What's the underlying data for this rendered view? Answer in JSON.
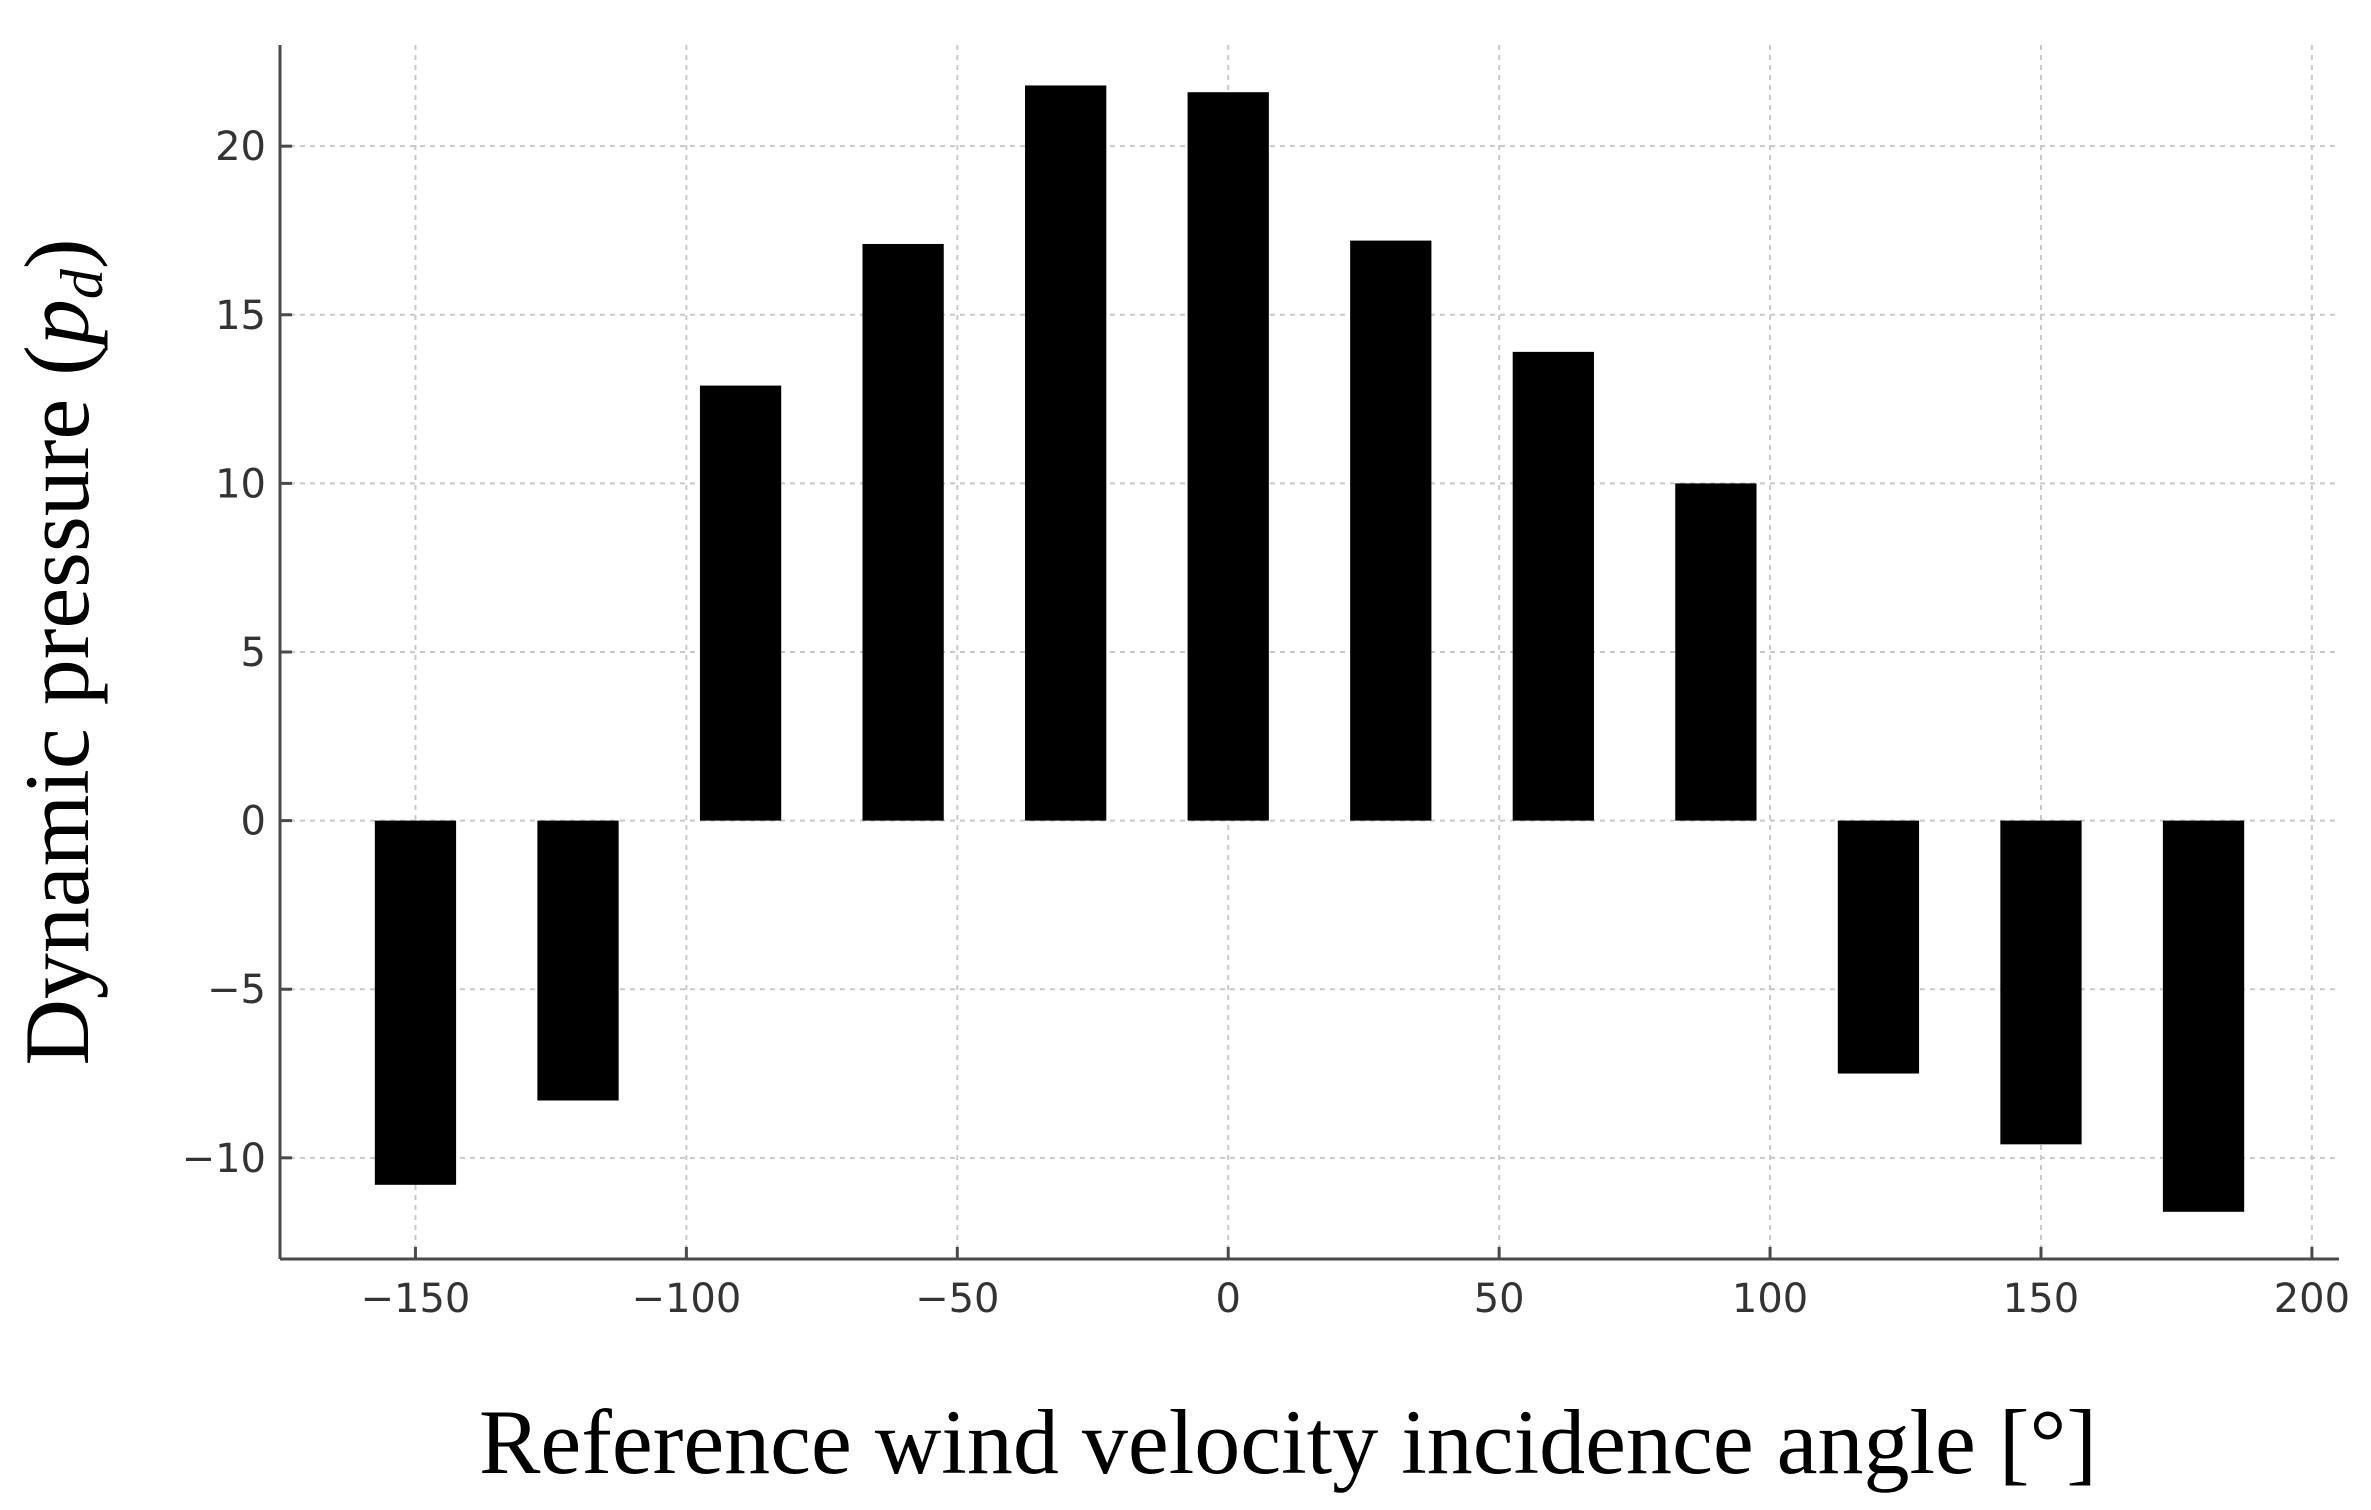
{
  "chart_data": {
    "type": "bar",
    "title": "",
    "xlabel": "Reference wind velocity incidence angle [°]",
    "ylabel_main": "Dynamic pressure (",
    "ylabel_symbol": "p",
    "ylabel_subscript": "d",
    "ylabel_close": ")",
    "x": [
      -150,
      -120,
      -90,
      -60,
      -30,
      0,
      30,
      60,
      90,
      120,
      150,
      180
    ],
    "values": [
      -10.8,
      -8.3,
      12.9,
      17.1,
      21.8,
      21.6,
      17.2,
      13.9,
      10.0,
      -7.5,
      -9.6,
      -11.6
    ],
    "bar_width": 15,
    "xlim": [
      -175,
      205
    ],
    "ylim": [
      -13,
      23
    ],
    "xticks": [
      -150,
      -100,
      -50,
      0,
      50,
      100,
      150,
      200
    ],
    "xtick_labels": [
      "−150",
      "−100",
      "−50",
      "0",
      "50",
      "100",
      "150",
      "200"
    ],
    "yticks": [
      -10,
      -5,
      0,
      5,
      10,
      15,
      20
    ],
    "ytick_labels": [
      "−10",
      "−5",
      "0",
      "5",
      "10",
      "15",
      "20"
    ],
    "grid": true,
    "bar_color": "#000000"
  }
}
